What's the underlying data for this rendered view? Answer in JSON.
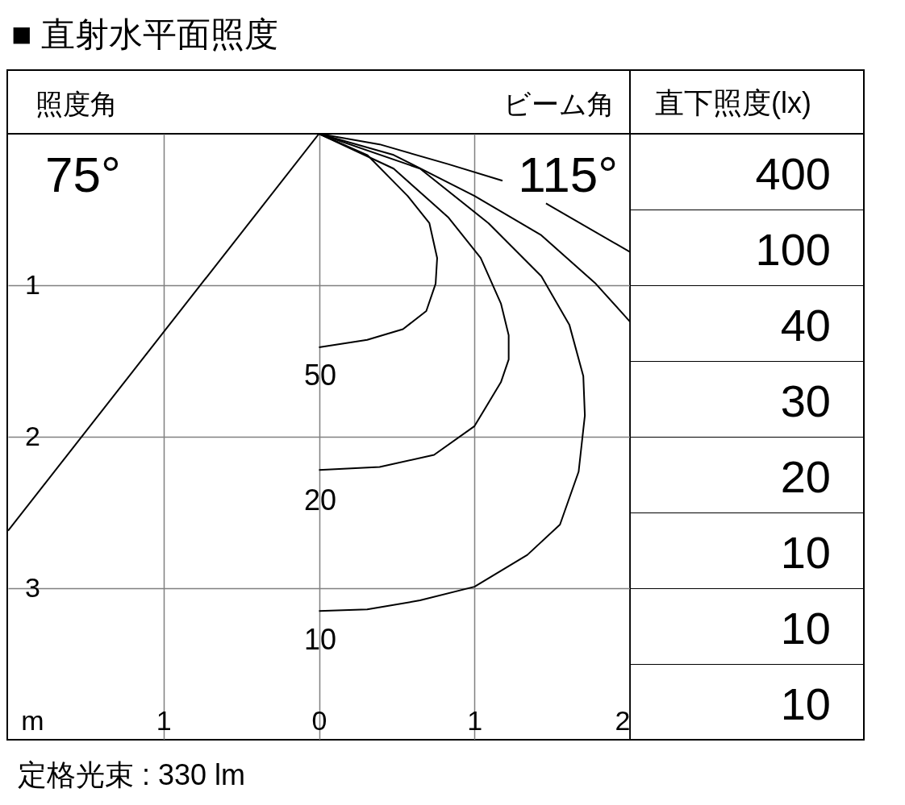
{
  "chart_data": {
    "type": "line",
    "title": "■ 直射水平面照度",
    "xlabel": "m",
    "xlim": [
      -2,
      2
    ],
    "ylim": [
      4,
      0
    ],
    "xticks": [
      {
        "value": -1,
        "label": "1"
      },
      0,
      1,
      2
    ],
    "yticks": [
      1,
      2,
      3
    ],
    "grid": true,
    "series": [
      {
        "color": "#000000",
        "x": [
          0,
          -2
        ],
        "values": [
          0,
          2.62
        ]
      },
      {
        "color": "#000000",
        "x": [
          0,
          0.31,
          0.57,
          0.71,
          0.76,
          0.75,
          0.69,
          0.54,
          0.31,
          0
        ],
        "values": [
          0,
          0.14,
          0.41,
          0.59,
          0.82,
          0.99,
          1.17,
          1.29,
          1.36,
          1.41
        ]
      },
      {
        "color": "#000000",
        "x": [
          0,
          0.48,
          0.83,
          1.04,
          1.17,
          1.22,
          1.22,
          1.17,
          1.0,
          0.74,
          0.39,
          0
        ],
        "values": [
          0,
          0.23,
          0.55,
          0.82,
          1.12,
          1.33,
          1.49,
          1.64,
          1.93,
          2.12,
          2.2,
          2.22
        ]
      },
      {
        "color": "#000000",
        "x": [
          0,
          0.65,
          1.09,
          1.43,
          1.61,
          1.7,
          1.71,
          1.67,
          1.55,
          1.34,
          1.0,
          0.65,
          0.31,
          0
        ],
        "values": [
          0,
          0.23,
          0.59,
          0.94,
          1.26,
          1.6,
          1.86,
          2.23,
          2.58,
          2.78,
          2.99,
          3.08,
          3.14,
          3.15
        ]
      },
      {
        "color": "#000000",
        "x": [
          0,
          0.48,
          1.0,
          1.43,
          1.78,
          2.0
        ],
        "values": [
          0,
          0.14,
          0.41,
          0.67,
          0.99,
          1.24
        ]
      },
      {
        "color": "#000000",
        "x": [
          0,
          0.39,
          0.83,
          1.18,
          1.3,
          1.46,
          2.0
        ],
        "values": [
          0,
          0.07,
          0.2,
          0.31,
          null,
          0.46,
          0.78
        ]
      }
    ],
    "annotations": [
      "照度角",
      "75°",
      "ビーム角",
      "115°",
      "直下照度(lx)",
      "400",
      "100",
      "40",
      "30",
      "20",
      "10",
      "10",
      "10",
      "50",
      "20",
      "10",
      "定格光束 : 330 lm"
    ]
  }
}
